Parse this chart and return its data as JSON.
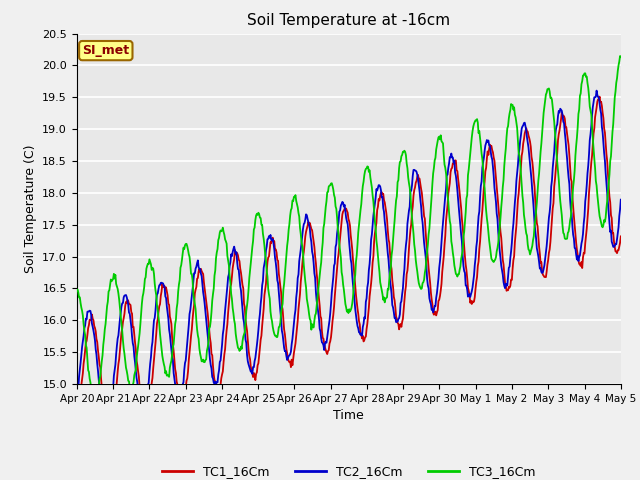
{
  "title": "Soil Temperature at -16cm",
  "xlabel": "Time",
  "ylabel": "Soil Temperature (C)",
  "ylim": [
    15.0,
    20.5
  ],
  "bg_color": "#e8e8e8",
  "grid_color": "white",
  "line_colors": {
    "TC1": "#cc0000",
    "TC2": "#0000cc",
    "TC3": "#00cc00"
  },
  "legend_labels": [
    "TC1_16Cm",
    "TC2_16Cm",
    "TC3_16Cm"
  ],
  "xtick_labels": [
    "Apr 20",
    "Apr 21",
    "Apr 22",
    "Apr 23",
    "Apr 24",
    "Apr 25",
    "Apr 26",
    "Apr 27",
    "Apr 28",
    "Apr 29",
    "Apr 30",
    "May 1",
    "May 2",
    "May 3",
    "May 4",
    "May 5"
  ],
  "annotation_text": "SI_met",
  "annotation_bg": "#ffff88",
  "annotation_border": "#884400",
  "n_points": 720
}
